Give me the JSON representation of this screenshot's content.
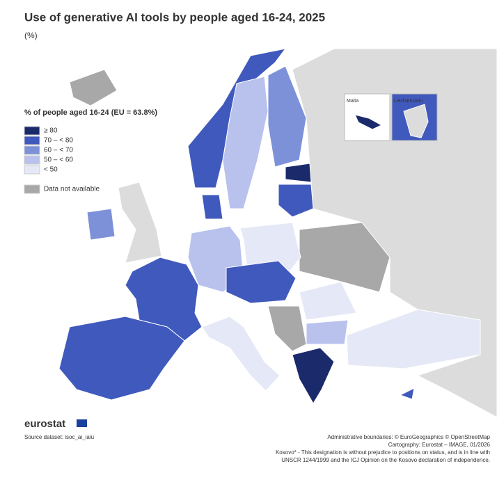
{
  "title": "Use of generative AI tools by people aged 16-24, 2025",
  "subtitle": "(%)",
  "legend": {
    "title": "% of people aged 16-24 (EU = 63.8%)",
    "items": [
      {
        "label": "≥ 80",
        "color": "#1b2a6b"
      },
      {
        "label": "70 – < 80",
        "color": "#4059bd"
      },
      {
        "label": "60 – < 70",
        "color": "#7d91d9"
      },
      {
        "label": "50 – < 60",
        "color": "#b8c2ed"
      },
      {
        "label": "< 50",
        "color": "#e5e8f6"
      },
      {
        "label": "Data not available",
        "color": "#a8a8a8"
      }
    ]
  },
  "insets": [
    "Malta",
    "Liechtenstein"
  ],
  "logo": "eurostat",
  "source": "Source dataset: isoc_ai_iaiu",
  "credits": [
    "Administrative boundaries: © EuroGeographics © OpenStreetMap",
    "Cartography: Eurostat – IMAGE, 01/2026",
    "Kosovo* - This designation is without prejudice to positions on status, and is in line with",
    "UNSCR 1244/1999 and the ICJ Opinion on the Kosovo declaration of independence."
  ]
}
